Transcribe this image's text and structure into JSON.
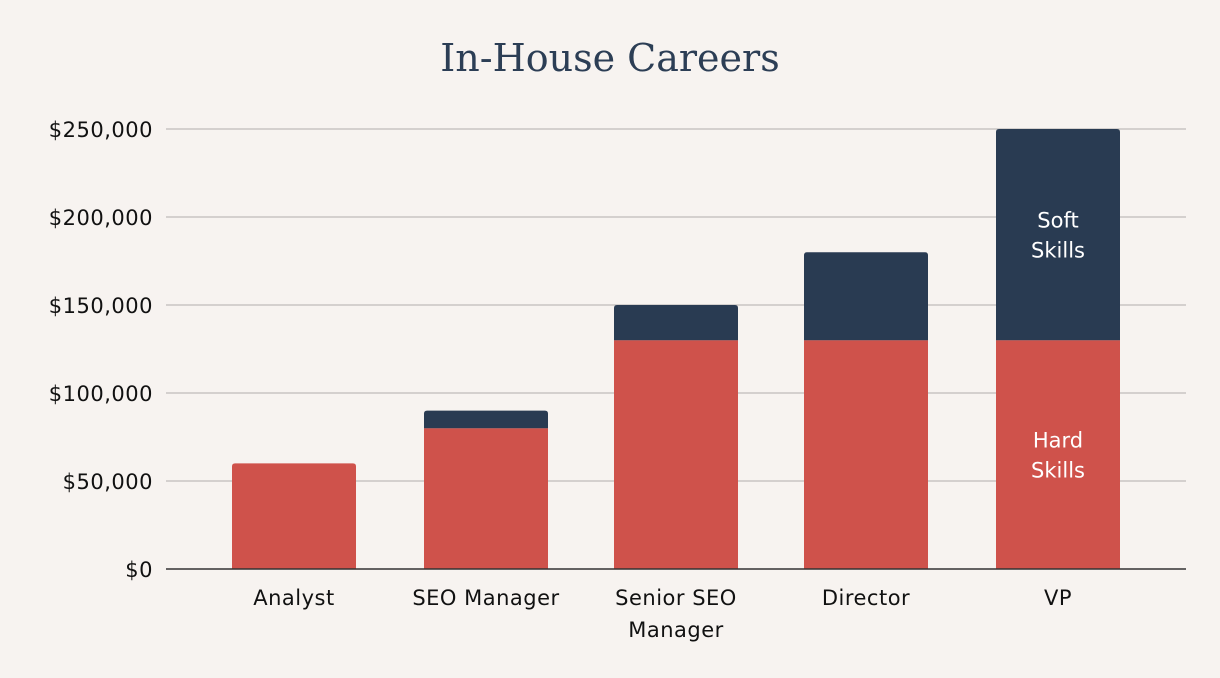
{
  "chart_data": {
    "type": "bar",
    "stacked": true,
    "title": "In-House Careers",
    "xlabel": "",
    "ylabel": "",
    "categories": [
      "Analyst",
      "SEO Manager",
      "Senior SEO Manager",
      "Director",
      "VP"
    ],
    "category_lines": [
      [
        "Analyst"
      ],
      [
        "SEO Manager"
      ],
      [
        "Senior SEO",
        "Manager"
      ],
      [
        "Director"
      ],
      [
        "VP"
      ]
    ],
    "series": [
      {
        "name": "Hard Skills",
        "color": "#cf524b",
        "values": [
          60000,
          80000,
          130000,
          130000,
          130000
        ]
      },
      {
        "name": "Soft Skills",
        "color": "#293b52",
        "values": [
          0,
          10000,
          20000,
          50000,
          120000
        ]
      }
    ],
    "ylim": [
      0,
      250000
    ],
    "yticks": [
      0,
      50000,
      100000,
      150000,
      200000,
      250000
    ],
    "ytick_labels": [
      "$0",
      "$50,000",
      "$100,000",
      "$150,000",
      "$200,000",
      "$250,000"
    ],
    "grid": true,
    "annotations": [
      {
        "category": "VP",
        "series": "Soft Skills",
        "lines": [
          "Soft",
          "Skills"
        ]
      },
      {
        "category": "VP",
        "series": "Hard Skills",
        "lines": [
          "Hard",
          "Skills"
        ]
      }
    ],
    "gridline_color": "#c9c5c2",
    "axis_color": "#333333"
  }
}
